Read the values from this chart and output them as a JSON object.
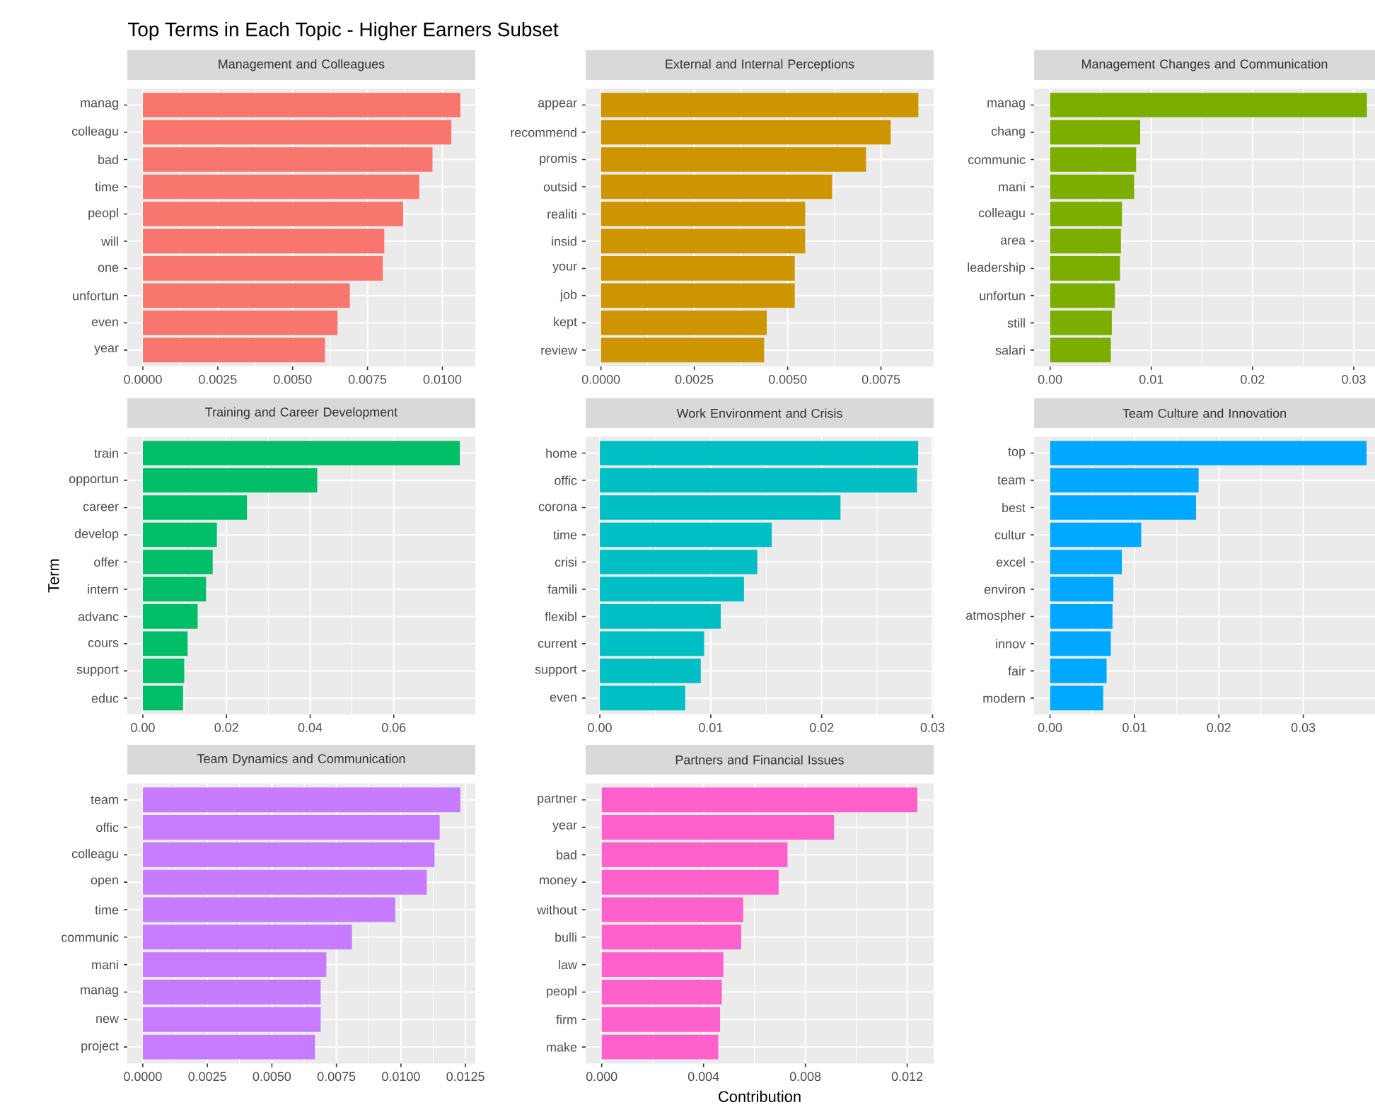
{
  "chart_data": [
    {
      "type": "bar",
      "orientation": "horizontal",
      "title": "Management and Colleagues",
      "annotations": [
        "Top Terms in Each Topic - Higher Earners Subset"
      ],
      "categories": [
        "manag",
        "colleagu",
        "bad",
        "time",
        "peopl",
        "will",
        "one",
        "unfortun",
        "even",
        "year"
      ],
      "values": [
        0.0106,
        0.0103,
        0.00967,
        0.00923,
        0.00869,
        0.00806,
        0.00801,
        0.00691,
        0.0065,
        0.00608
      ],
      "color": "#f8766d",
      "xlim": [
        -0.00052,
        0.0111
      ],
      "xticks": [
        {
          "value": 0,
          "label": "0.0000"
        },
        {
          "value": 0.0025,
          "label": "0.0025"
        },
        {
          "value": 0.005,
          "label": "0.0050"
        },
        {
          "value": 0.0075,
          "label": "0.0075"
        },
        {
          "value": 0.01,
          "label": "0.0100"
        }
      ],
      "grid": true
    },
    {
      "type": "bar",
      "orientation": "horizontal",
      "title": "External and Internal Perceptions",
      "categories": [
        "appear",
        "recommend",
        "promis",
        "outsid",
        "realiti",
        "insid",
        "your",
        "job",
        "kept",
        "review"
      ],
      "values": [
        0.0085,
        0.00776,
        0.0071,
        0.00619,
        0.00547,
        0.00547,
        0.00519,
        0.00519,
        0.00444,
        0.00437
      ],
      "color": "#cd9600",
      "xlim": [
        -0.00041,
        0.00891
      ],
      "xticks": [
        {
          "value": 0,
          "label": "0.0000"
        },
        {
          "value": 0.0025,
          "label": "0.0025"
        },
        {
          "value": 0.005,
          "label": "0.0050"
        },
        {
          "value": 0.0075,
          "label": "0.0075"
        }
      ],
      "grid": true
    },
    {
      "type": "bar",
      "orientation": "horizontal",
      "title": "Management Changes and Communication",
      "categories": [
        "manag",
        "chang",
        "communic",
        "mani",
        "colleagu",
        "area",
        "leadership",
        "unfortun",
        "still",
        "salari"
      ],
      "values": [
        0.0313,
        0.0089,
        0.0085,
        0.0083,
        0.0071,
        0.007,
        0.0069,
        0.0064,
        0.0061,
        0.006
      ],
      "color": "#7cae00",
      "xlim": [
        -0.00158,
        0.0321
      ],
      "xticks": [
        {
          "value": 0,
          "label": "0.00"
        },
        {
          "value": 0.01,
          "label": "0.01"
        },
        {
          "value": 0.02,
          "label": "0.02"
        },
        {
          "value": 0.03,
          "label": "0.03"
        }
      ],
      "grid": true
    },
    {
      "type": "bar",
      "orientation": "horizontal",
      "title": "Training and Career Development",
      "ylabel": "Term",
      "categories": [
        "train",
        "opportun",
        "career",
        "develop",
        "offer",
        "intern",
        "advanc",
        "cours",
        "support",
        "educ"
      ],
      "values": [
        0.0758,
        0.0417,
        0.0249,
        0.0177,
        0.0167,
        0.0151,
        0.0131,
        0.0107,
        0.0099,
        0.0096
      ],
      "color": "#00be67",
      "xlim": [
        -0.00372,
        0.0795
      ],
      "xticks": [
        {
          "value": 0,
          "label": "0.00"
        },
        {
          "value": 0.02,
          "label": "0.02"
        },
        {
          "value": 0.04,
          "label": "0.04"
        },
        {
          "value": 0.06,
          "label": "0.06"
        }
      ],
      "grid": true
    },
    {
      "type": "bar",
      "orientation": "horizontal",
      "title": "Work Environment and Crisis",
      "categories": [
        "home",
        "offic",
        "corona",
        "time",
        "crisi",
        "famili",
        "flexibl",
        "current",
        "support",
        "even"
      ],
      "values": [
        0.0287,
        0.0286,
        0.0217,
        0.0155,
        0.0142,
        0.013,
        0.0109,
        0.0094,
        0.0091,
        0.0077
      ],
      "color": "#00bfc4",
      "xlim": [
        -0.00128,
        0.0301
      ],
      "xticks": [
        {
          "value": 0,
          "label": "0.00"
        },
        {
          "value": 0.01,
          "label": "0.01"
        },
        {
          "value": 0.02,
          "label": "0.02"
        },
        {
          "value": 0.03,
          "label": "0.03"
        }
      ],
      "grid": true
    },
    {
      "type": "bar",
      "orientation": "horizontal",
      "title": "Team Culture and Innovation",
      "categories": [
        "top",
        "team",
        "best",
        "cultur",
        "excel",
        "environ",
        "atmospher",
        "innov",
        "fair",
        "modern"
      ],
      "values": [
        0.0375,
        0.0176,
        0.0173,
        0.0108,
        0.0085,
        0.0075,
        0.0074,
        0.0072,
        0.0067,
        0.0063
      ],
      "color": "#00a9ff",
      "xlim": [
        -0.00189,
        0.0385
      ],
      "xticks": [
        {
          "value": 0,
          "label": "0.00"
        },
        {
          "value": 0.01,
          "label": "0.01"
        },
        {
          "value": 0.02,
          "label": "0.02"
        },
        {
          "value": 0.03,
          "label": "0.03"
        }
      ],
      "grid": true
    },
    {
      "type": "bar",
      "orientation": "horizontal",
      "title": "Team Dynamics and Communication",
      "categories": [
        "team",
        "offic",
        "colleagu",
        "open",
        "time",
        "communic",
        "mani",
        "manag",
        "new",
        "project"
      ],
      "values": [
        0.0123,
        0.0115,
        0.0113,
        0.011,
        0.00978,
        0.0081,
        0.00711,
        0.00689,
        0.00689,
        0.00667
      ],
      "color": "#c77cff",
      "xlim": [
        -0.0006,
        0.01288
      ],
      "xticks": [
        {
          "value": 0,
          "label": "0.0000"
        },
        {
          "value": 0.0025,
          "label": "0.0025"
        },
        {
          "value": 0.005,
          "label": "0.0050"
        },
        {
          "value": 0.0075,
          "label": "0.0075"
        },
        {
          "value": 0.01,
          "label": "0.0100"
        },
        {
          "value": 0.0125,
          "label": "0.0125"
        }
      ],
      "grid": true
    },
    {
      "type": "bar",
      "orientation": "horizontal",
      "title": "Partners and Financial Issues",
      "xlabel": "Contribution",
      "categories": [
        "partner",
        "year",
        "bad",
        "money",
        "without",
        "bulli",
        "law",
        "peopl",
        "firm",
        "make"
      ],
      "values": [
        0.0124,
        0.00913,
        0.0073,
        0.00695,
        0.00556,
        0.00548,
        0.00478,
        0.00472,
        0.00465,
        0.00458
      ],
      "color": "#ff61cc",
      "xlim": [
        -0.00063,
        0.01304
      ],
      "xticks": [
        {
          "value": 0,
          "label": "0.000"
        },
        {
          "value": 0.004,
          "label": "0.004"
        },
        {
          "value": 0.008,
          "label": "0.008"
        },
        {
          "value": 0.012,
          "label": "0.012"
        }
      ],
      "grid": true
    }
  ]
}
